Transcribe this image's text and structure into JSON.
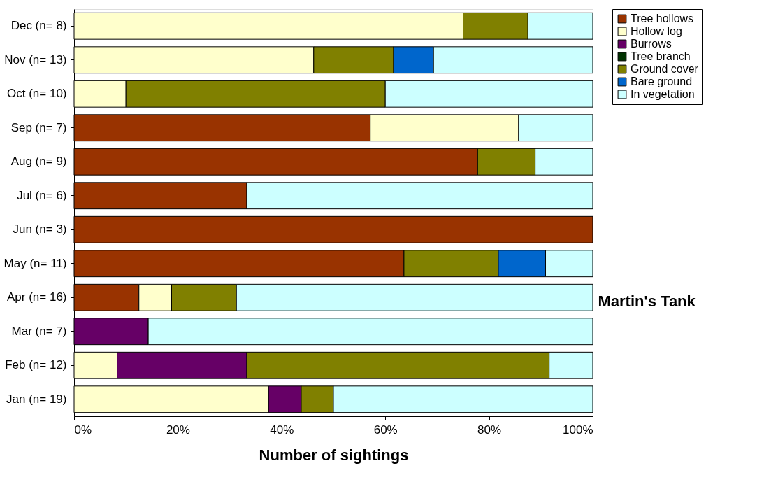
{
  "chart_data": {
    "type": "bar",
    "orientation": "horizontal",
    "stacked": true,
    "title": "Martin's Tank",
    "xlabel": "Number of sightings",
    "categories": [
      "Dec (n= 8)",
      "Nov (n= 13)",
      "Oct (n= 10)",
      "Sep (n= 7)",
      "Aug (n= 9)",
      "Jul (n= 6)",
      "Jun (n= 3)",
      "May (n= 11)",
      "Apr (n= 16)",
      "Mar (n= 7)",
      "Feb (n= 12)",
      "Jan (n= 19)"
    ],
    "series": [
      {
        "name": "Tree hollows",
        "color": "#993300",
        "values": [
          null,
          null,
          null,
          57.1,
          77.8,
          33.3,
          100,
          63.6,
          12.5,
          null,
          null,
          null
        ]
      },
      {
        "name": "Hollow log",
        "color": "#ffffcc",
        "values": [
          75,
          46.2,
          10,
          28.6,
          null,
          null,
          null,
          null,
          6.3,
          null,
          8.3,
          37.5
        ]
      },
      {
        "name": "Burrows",
        "color": "#660066",
        "values": [
          null,
          null,
          null,
          null,
          null,
          null,
          null,
          null,
          null,
          14.3,
          25,
          6.3
        ]
      },
      {
        "name": "Tree branch",
        "color": "#003300",
        "values": [
          null,
          null,
          null,
          null,
          null,
          null,
          null,
          null,
          null,
          null,
          null,
          null
        ]
      },
      {
        "name": "Ground cover",
        "color": "#808000",
        "values": [
          12.5,
          15.4,
          50,
          null,
          11.1,
          null,
          null,
          18.2,
          12.5,
          null,
          58.3,
          6.2
        ]
      },
      {
        "name": "Bare ground",
        "color": "#0066cc",
        "values": [
          null,
          7.7,
          null,
          null,
          null,
          null,
          null,
          9.1,
          null,
          null,
          null,
          null
        ]
      },
      {
        "name": "In vegetation",
        "color": "#ccffff",
        "values": [
          12.5,
          30.7,
          40,
          14.3,
          11.1,
          66.7,
          null,
          9.1,
          68.7,
          85.7,
          8.4,
          50
        ]
      }
    ],
    "xlim": [
      0,
      100
    ],
    "xticks": [
      {
        "value": 0,
        "label": "0%"
      },
      {
        "value": 20,
        "label": "20%"
      },
      {
        "value": 40,
        "label": "40%"
      },
      {
        "value": 60,
        "label": "60%"
      },
      {
        "value": 80,
        "label": "80%"
      },
      {
        "value": 100,
        "label": "100%"
      }
    ],
    "grid": false,
    "legend": "right"
  }
}
